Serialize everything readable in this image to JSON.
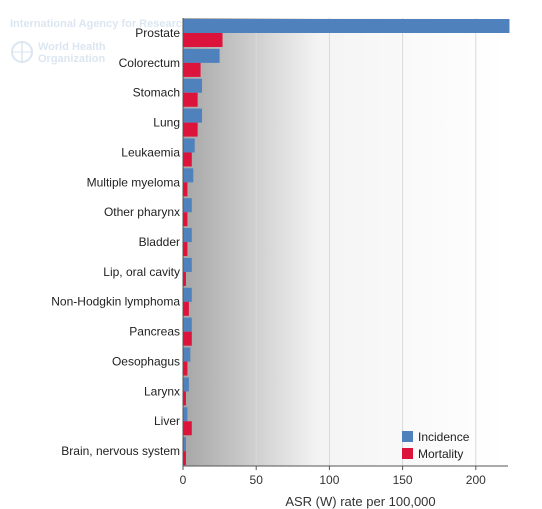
{
  "watermark": {
    "agency": "International Agency for Research on Cancer",
    "who_line1": "World Health",
    "who_line2": "Organization"
  },
  "chart_data": {
    "type": "bar",
    "orientation": "horizontal",
    "categories": [
      "Prostate",
      "Colorectum",
      "Stomach",
      "Lung",
      "Leukaemia",
      "Multiple myeloma",
      "Other pharynx",
      "Bladder",
      "Lip, oral cavity",
      "Non-Hodgkin lymphoma",
      "Pancreas",
      "Oesophagus",
      "Larynx",
      "Liver",
      "Brain, nervous system"
    ],
    "series": [
      {
        "name": "Incidence",
        "color": "#4f81bd",
        "values": [
          223,
          25,
          13,
          13,
          8,
          7,
          6,
          6,
          6,
          6,
          6,
          5,
          4,
          3,
          2
        ]
      },
      {
        "name": "Mortality",
        "color": "#dc143c",
        "values": [
          27,
          12,
          10,
          10,
          6,
          3,
          3,
          3,
          2,
          4,
          6,
          3,
          2,
          6,
          2
        ]
      }
    ],
    "xlabel": "ASR (W) rate per 100,000",
    "xlim": [
      0,
      222
    ],
    "xticks": [
      0,
      50,
      100,
      150,
      200
    ],
    "grid": true,
    "legend": "bottom-right"
  }
}
